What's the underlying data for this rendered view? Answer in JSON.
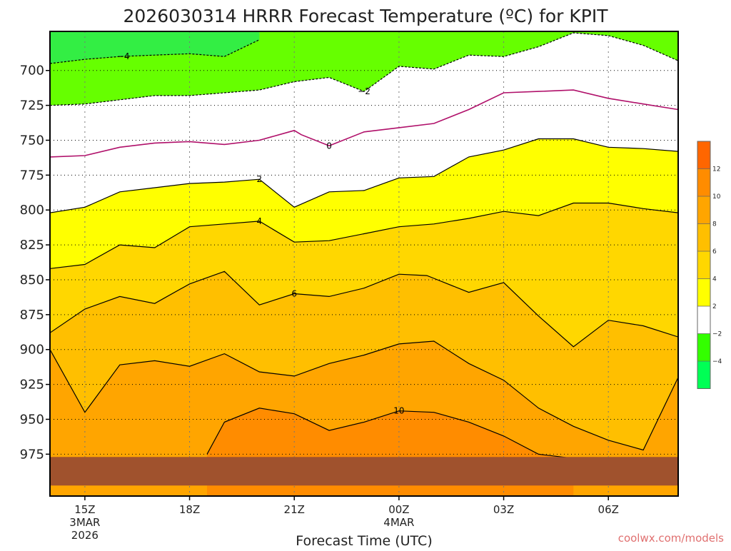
{
  "chart_data": {
    "type": "contour",
    "title": "2026030314 HRRR Forecast Temperature (ºC) for KPIT",
    "xlabel": "Forecast Time (UTC)",
    "ylabel": "",
    "credit": "coolwx.com/models",
    "y_axis": {
      "ticks": [
        700,
        725,
        750,
        775,
        800,
        825,
        850,
        875,
        900,
        925,
        950,
        975
      ],
      "ylim": [
        1005,
        672
      ]
    },
    "x_axis": {
      "ticks": [
        {
          "t": 1,
          "label": "15Z",
          "sub1": "3MAR",
          "sub2": "2026"
        },
        {
          "t": 4,
          "label": "18Z",
          "sub1": "",
          "sub2": ""
        },
        {
          "t": 7,
          "label": "21Z",
          "sub1": "",
          "sub2": ""
        },
        {
          "t": 10,
          "label": "00Z",
          "sub1": "4MAR",
          "sub2": ""
        },
        {
          "t": 13,
          "label": "03Z",
          "sub1": "",
          "sub2": ""
        },
        {
          "t": 16,
          "label": "06Z",
          "sub1": "",
          "sub2": ""
        }
      ],
      "xlim": [
        0,
        18
      ]
    },
    "contour_levels": [
      -4,
      -2,
      0,
      2,
      4,
      6,
      8,
      10,
      12
    ],
    "colorbar": {
      "labels": [
        "12",
        "10",
        "8",
        "6",
        "4",
        "2",
        "−2",
        "−4"
      ],
      "colors": [
        "#ff6600",
        "#ff8c00",
        "#ffa500",
        "#ffbf00",
        "#ffd700",
        "#ffff00",
        "#ffffff",
        "#33ff00",
        "#00ff55"
      ]
    },
    "fill_colors": {
      "m4": "#33ee44",
      "m2": "#66ff00",
      "zero": "#ffffff",
      "c0": "#ffffff",
      "c2": "#ffff00",
      "c4": "#ffd700",
      "c6": "#ffbf00",
      "c8": "#ffa500",
      "c10": "#ff8c00",
      "c12": "#ff6600",
      "ground": "#a0522d",
      "line": "#000000",
      "zero_line": "#b0106a"
    },
    "isotherms": [
      {
        "level": -4,
        "x": [
          0,
          1,
          2,
          3,
          4,
          5,
          6
        ],
        "y": [
          695,
          692,
          690,
          689,
          688,
          690,
          678
        ],
        "label": "−4",
        "label_x": 2.1
      },
      {
        "level": -2,
        "x": [
          0,
          1,
          2,
          3,
          4,
          5,
          6,
          7,
          8,
          9,
          10,
          11,
          12,
          13,
          14,
          15,
          16,
          17,
          18
        ],
        "y": [
          725,
          724,
          721,
          718,
          718,
          716,
          714,
          708,
          705,
          715,
          697,
          699,
          689,
          690,
          683,
          673,
          675,
          682,
          693
        ],
        "label": "−2",
        "label_x": 9.0
      },
      {
        "level": 0,
        "x": [
          0,
          1,
          2,
          3,
          4,
          5,
          6,
          7,
          7.2,
          8,
          9,
          10,
          11,
          12,
          13,
          14,
          15,
          16,
          17,
          18
        ],
        "y": [
          762,
          761,
          755,
          752,
          751,
          753,
          750,
          743,
          746,
          754,
          744,
          741,
          738,
          728,
          716,
          715,
          714,
          720,
          724,
          728
        ],
        "label": "0",
        "label_x": 8.0
      },
      {
        "level": 2,
        "x": [
          0,
          1,
          2,
          3,
          4,
          5,
          6,
          7,
          8,
          9,
          10,
          11,
          12,
          13,
          14,
          15,
          16,
          17,
          18
        ],
        "y": [
          802,
          798,
          787,
          784,
          781,
          780,
          778,
          798,
          787,
          786,
          777,
          776,
          762,
          757,
          749,
          749,
          755,
          756,
          758
        ],
        "label": "2",
        "label_x": 6.0
      },
      {
        "level": 4,
        "x": [
          0,
          1,
          2,
          3,
          4,
          5,
          6,
          7,
          8,
          9,
          10,
          11,
          12,
          13,
          14,
          15,
          16,
          17,
          18
        ],
        "y": [
          842,
          839,
          825,
          827,
          812,
          810,
          808,
          823,
          822,
          817,
          812,
          810,
          806,
          801,
          804,
          795,
          795,
          799,
          802
        ],
        "label": "4",
        "label_x": 6.0
      },
      {
        "level": 6,
        "x": [
          0,
          1,
          2,
          3,
          4,
          5,
          6,
          7,
          8,
          9,
          10,
          10.8,
          11,
          12,
          13,
          14,
          15,
          16,
          17,
          18
        ],
        "y": [
          888,
          871,
          862,
          867,
          853,
          844,
          868,
          860,
          862,
          856,
          846,
          847,
          849,
          859,
          852,
          876,
          898,
          879,
          883,
          891
        ],
        "label": "6",
        "label_x": 7.0
      },
      {
        "level": 8,
        "x": [
          0,
          1,
          2,
          3,
          4,
          5,
          6,
          7,
          8,
          9,
          10,
          11,
          12,
          13,
          14,
          15,
          16,
          17,
          18
        ],
        "y": [
          900,
          945,
          911,
          908,
          912,
          903,
          916,
          919,
          910,
          904,
          896,
          894,
          910,
          922,
          942,
          955,
          965,
          972,
          920
        ],
        "label": "",
        "label_x": 0
      },
      {
        "level": 10,
        "x": [
          4.5,
          5,
          6,
          7,
          8,
          9,
          10,
          11,
          12,
          13,
          14,
          15
        ],
        "y": [
          975,
          952,
          942,
          946,
          958,
          952,
          944,
          945,
          952,
          962,
          975,
          978
        ],
        "label": "10",
        "label_x": 10.0
      }
    ],
    "ground_level": 977
  }
}
